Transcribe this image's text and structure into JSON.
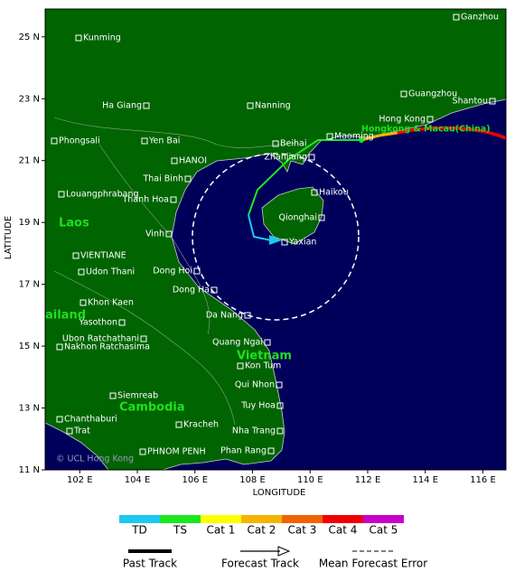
{
  "map": {
    "x_label": "LONGITUDE",
    "y_label": "LATITUDE",
    "xlim": [
      100.8,
      116.8
    ],
    "ylim": [
      11,
      25.9
    ],
    "xticks": [
      {
        "value": 102,
        "label": "102 E"
      },
      {
        "value": 104,
        "label": "104 E"
      },
      {
        "value": 106,
        "label": "106 E"
      },
      {
        "value": 108,
        "label": "108 E"
      },
      {
        "value": 110,
        "label": "110 E"
      },
      {
        "value": 112,
        "label": "112 E"
      },
      {
        "value": 114,
        "label": "114 E"
      },
      {
        "value": 116,
        "label": "116 E"
      }
    ],
    "yticks": [
      {
        "value": 11,
        "label": "11 N"
      },
      {
        "value": 13,
        "label": "13 N"
      },
      {
        "value": 15,
        "label": "15 N"
      },
      {
        "value": 17,
        "label": "17 N"
      },
      {
        "value": 19,
        "label": "19 N"
      },
      {
        "value": 21,
        "label": "21 N"
      },
      {
        "value": 23,
        "label": "23 N"
      },
      {
        "value": 25,
        "label": "25 N"
      }
    ],
    "places": [
      "Ganzhou",
      "Kunming",
      "Ha Giang",
      "Nanning",
      "Guangzhou",
      "Shantou",
      "Hong Kong",
      "Phongsali",
      "Yen Bai",
      "Beihai",
      "Maoming",
      "HANOI",
      "Zhanjiang",
      "Thai Binh",
      "Louangphrabang",
      "Haikou",
      "Thanh Hoa",
      "Qionghai",
      "Vinh",
      "Yaxian",
      "VIENTIANE",
      "Udon Thani",
      "Dong Hoi",
      "Dong Ha",
      "Khon Kaen",
      "Da Nang",
      "Yasothon",
      "Ubon Ratchathani",
      "Nakhon Ratchasima",
      "Quang Ngai",
      "Kon Tum",
      "Qui Nhon",
      "Siemreab",
      "Tuy Hoa",
      "Chanthaburi",
      "Kracheh",
      "Trat",
      "Nha Trang",
      "PHNOM PENH",
      "Phan Rang"
    ],
    "regions": [
      "Laos",
      "ailand",
      "Vietnam",
      "Cambodia"
    ],
    "storm_label": "Hongkong & Macau(China)",
    "watermark": "© UCL  Hong Kong"
  },
  "legend": {
    "intensity": [
      {
        "label": "TD",
        "color": "#1ec8f0"
      },
      {
        "label": "TS",
        "color": "#1ee61e"
      },
      {
        "label": "Cat 1",
        "color": "#ffff00"
      },
      {
        "label": "Cat 2",
        "color": "#f5b400"
      },
      {
        "label": "Cat 3",
        "color": "#f06400"
      },
      {
        "label": "Cat 4",
        "color": "#f00000"
      },
      {
        "label": "Cat 5",
        "color": "#c800c8"
      }
    ],
    "tracks": [
      "Past Track",
      "Forecast Track",
      "Mean Forecast Error"
    ]
  }
}
